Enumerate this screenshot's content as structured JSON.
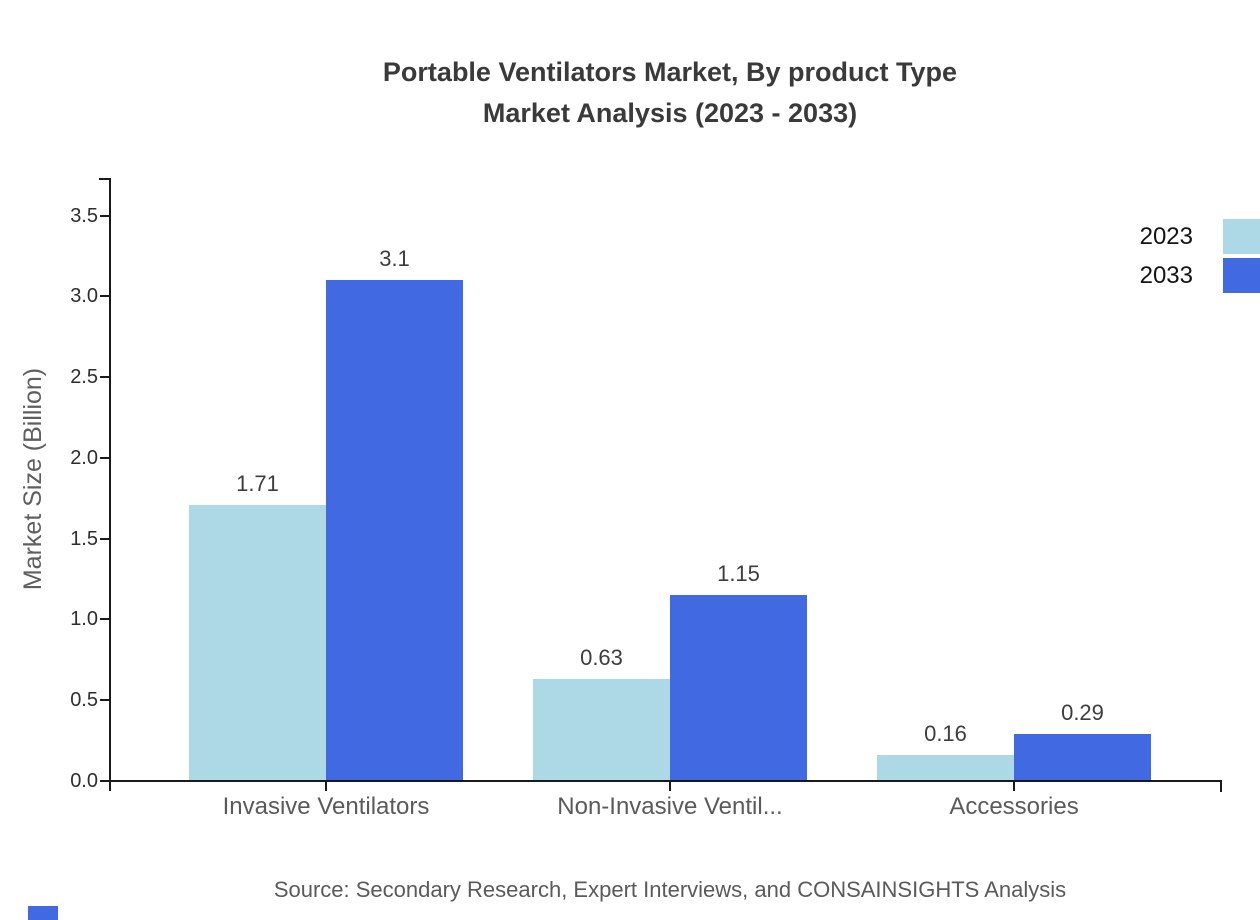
{
  "title": {
    "line1": "Portable Ventilators Market, By product Type",
    "line2": "Market Analysis (2023 - 2033)"
  },
  "source": "Source: Secondary Research, Expert Interviews, and CONSAINSIGHTS Analysis",
  "legend": {
    "items": [
      {
        "label": "2023",
        "color": "#add8e6"
      },
      {
        "label": "2033",
        "color": "#4169e1"
      }
    ]
  },
  "brand_mark_color": "#4169e1",
  "chart_data": {
    "type": "bar",
    "title": "Portable Ventilators Market, By product Type Market Analysis (2023 - 2033)",
    "categories": [
      "Invasive Ventilators",
      "Non-Invasive Ventil...",
      "Accessories"
    ],
    "series": [
      {
        "name": "2023",
        "color": "#add8e6",
        "values": [
          1.71,
          0.63,
          0.16
        ],
        "labels": [
          "1.71",
          "0.63",
          "0.16"
        ]
      },
      {
        "name": "2033",
        "color": "#4169e1",
        "values": [
          3.1,
          1.15,
          0.29
        ],
        "labels": [
          "3.1",
          "1.15",
          "0.29"
        ]
      }
    ],
    "xlabel": "",
    "ylabel": "Market Size (Billion)",
    "ylim": [
      0,
      3.5
    ],
    "yticks": [
      "0.0",
      "0.5",
      "1.0",
      "1.5",
      "2.0",
      "2.5",
      "3.0",
      "3.5"
    ],
    "grid": false,
    "legend_position": "top-right"
  }
}
